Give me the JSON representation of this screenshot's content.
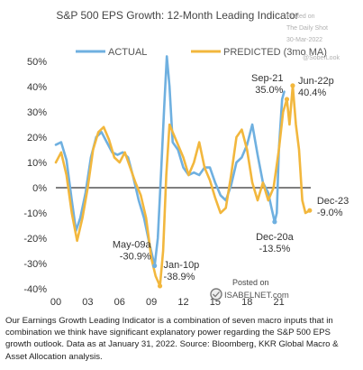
{
  "header": {
    "title": "S&P 500 EPS Growth: 12-Month Leading Indicator",
    "watermark_lines": [
      "Posted on",
      "The Daily Shot",
      "30-Mar-2022",
      "@SoberLook"
    ]
  },
  "footer": {
    "posted_on": "Posted on",
    "isabelnet": "ISABELNET.com",
    "caption": "Our Earnings Growth Leading Indicator is a combination of seven macro inputs that in combination we think have significant explanatory power regarding the S&P 500 EPS growth outlook. Data as at January 31, 2022. Source: Bloomberg, KKR Global Macro & Asset Allocation analysis."
  },
  "colors": {
    "actual": "#6fb0e0",
    "predicted": "#f2b73d",
    "zero": "#333333",
    "text": "#333333"
  },
  "chart_data": {
    "type": "line",
    "title": "S&P 500 EPS Growth: 12-Month Leading Indicator",
    "xlabel": "",
    "ylabel": "",
    "xlim": [
      2000,
      2024
    ],
    "ylim": [
      -40,
      50
    ],
    "x_ticks": [
      {
        "value": 2000,
        "label": "00"
      },
      {
        "value": 2003,
        "label": "03"
      },
      {
        "value": 2006,
        "label": "06"
      },
      {
        "value": 2009,
        "label": "09"
      },
      {
        "value": 2012,
        "label": "12"
      },
      {
        "value": 2015,
        "label": "15"
      },
      {
        "value": 2018,
        "label": "18"
      },
      {
        "value": 2021,
        "label": "21"
      }
    ],
    "y_ticks": [
      {
        "value": 50,
        "label": "50%"
      },
      {
        "value": 40,
        "label": "40%"
      },
      {
        "value": 30,
        "label": "30%"
      },
      {
        "value": 20,
        "label": "20%"
      },
      {
        "value": 10,
        "label": "10%"
      },
      {
        "value": 0,
        "label": "0%"
      },
      {
        "value": -10,
        "label": "-10%"
      },
      {
        "value": -20,
        "label": "-20%"
      },
      {
        "value": -30,
        "label": "-30%"
      },
      {
        "value": -40,
        "label": "-40%"
      }
    ],
    "grid": false,
    "legend_position": "top",
    "series": [
      {
        "name": "ACTUAL",
        "points": [
          [
            2000.0,
            17
          ],
          [
            2000.5,
            18
          ],
          [
            2001.0,
            11
          ],
          [
            2001.5,
            -5
          ],
          [
            2001.9,
            -17
          ],
          [
            2002.3,
            -12
          ],
          [
            2002.8,
            -2
          ],
          [
            2003.3,
            12
          ],
          [
            2003.8,
            20
          ],
          [
            2004.3,
            22
          ],
          [
            2004.8,
            18
          ],
          [
            2005.3,
            14
          ],
          [
            2005.8,
            13
          ],
          [
            2006.3,
            14
          ],
          [
            2006.8,
            12
          ],
          [
            2007.3,
            4
          ],
          [
            2007.8,
            -5
          ],
          [
            2008.3,
            -12
          ],
          [
            2008.8,
            -22
          ],
          [
            2009.3,
            -30.9
          ],
          [
            2009.6,
            -20
          ],
          [
            2009.9,
            5
          ],
          [
            2010.2,
            32
          ],
          [
            2010.45,
            52
          ],
          [
            2010.7,
            40
          ],
          [
            2011.0,
            18
          ],
          [
            2011.5,
            15
          ],
          [
            2012.0,
            8
          ],
          [
            2012.5,
            5
          ],
          [
            2013.0,
            6
          ],
          [
            2013.5,
            5
          ],
          [
            2014.0,
            8
          ],
          [
            2014.5,
            8
          ],
          [
            2015.0,
            2
          ],
          [
            2015.5,
            -3
          ],
          [
            2016.0,
            -5
          ],
          [
            2016.5,
            1
          ],
          [
            2017.0,
            10
          ],
          [
            2017.5,
            12
          ],
          [
            2018.0,
            17
          ],
          [
            2018.5,
            25
          ],
          [
            2019.0,
            13
          ],
          [
            2019.5,
            2
          ],
          [
            2020.0,
            -2
          ],
          [
            2020.3,
            -8
          ],
          [
            2020.6,
            -13.5
          ],
          [
            2020.8,
            -10
          ],
          [
            2021.0,
            15
          ],
          [
            2021.3,
            35
          ],
          [
            2021.5,
            38
          ]
        ]
      },
      {
        "name": "PREDICTED (3mo MA)",
        "points": [
          [
            2000.0,
            10
          ],
          [
            2000.5,
            14
          ],
          [
            2001.0,
            5
          ],
          [
            2001.5,
            -10
          ],
          [
            2002.0,
            -21
          ],
          [
            2002.5,
            -12
          ],
          [
            2003.0,
            0
          ],
          [
            2003.5,
            15
          ],
          [
            2004.0,
            22
          ],
          [
            2004.5,
            24
          ],
          [
            2005.0,
            19
          ],
          [
            2005.5,
            12
          ],
          [
            2006.0,
            10
          ],
          [
            2006.5,
            14
          ],
          [
            2007.0,
            8
          ],
          [
            2007.5,
            2
          ],
          [
            2008.0,
            -3
          ],
          [
            2008.5,
            -12
          ],
          [
            2009.0,
            -28
          ],
          [
            2009.4,
            -35
          ],
          [
            2009.8,
            -38.9
          ],
          [
            2010.1,
            -25
          ],
          [
            2010.4,
            5
          ],
          [
            2010.7,
            25
          ],
          [
            2011.0,
            22
          ],
          [
            2011.5,
            17
          ],
          [
            2012.0,
            12
          ],
          [
            2012.5,
            5
          ],
          [
            2013.0,
            10
          ],
          [
            2013.5,
            18
          ],
          [
            2014.0,
            8
          ],
          [
            2014.5,
            3
          ],
          [
            2015.0,
            -4
          ],
          [
            2015.5,
            -10
          ],
          [
            2016.0,
            -8
          ],
          [
            2016.5,
            5
          ],
          [
            2017.0,
            20
          ],
          [
            2017.5,
            23
          ],
          [
            2018.0,
            15
          ],
          [
            2018.5,
            2
          ],
          [
            2019.0,
            -5
          ],
          [
            2019.5,
            2
          ],
          [
            2020.0,
            -5
          ],
          [
            2020.5,
            0
          ],
          [
            2021.0,
            15
          ],
          [
            2021.4,
            30
          ],
          [
            2021.75,
            35
          ],
          [
            2022.0,
            25
          ],
          [
            2022.3,
            40.4
          ],
          [
            2022.6,
            25
          ],
          [
            2022.9,
            15
          ],
          [
            2023.2,
            -5
          ],
          [
            2023.5,
            -10
          ],
          [
            2023.9,
            -9
          ]
        ]
      }
    ],
    "annotations": [
      {
        "series": "ACTUAL",
        "x": 2009.3,
        "y": -30.9,
        "label": "May-09a",
        "value": "-30.9%",
        "align": "end",
        "side": "above"
      },
      {
        "series": "PREDICTED (3mo MA)",
        "x": 2009.8,
        "y": -38.9,
        "label": "Jan-10p",
        "value": "-38.9%",
        "align": "start",
        "side": "above"
      },
      {
        "series": "PREDICTED (3mo MA)",
        "x": 2021.75,
        "y": 35,
        "label": "Sep-21",
        "value": "35.0%",
        "align": "end",
        "side": "above"
      },
      {
        "series": "PREDICTED (3mo MA)",
        "x": 2022.3,
        "y": 40.4,
        "label": "Jun-22p",
        "value": "40.4%",
        "align": "start",
        "side": "right"
      },
      {
        "series": "ACTUAL",
        "x": 2020.6,
        "y": -13.5,
        "label": "Dec-20a",
        "value": "-13.5%",
        "align": "middle",
        "side": "below"
      },
      {
        "series": "PREDICTED (3mo MA)",
        "x": 2023.9,
        "y": -9.0,
        "label": "Dec-23",
        "value": "-9.0%",
        "align": "start",
        "side": "upper-right"
      }
    ]
  }
}
